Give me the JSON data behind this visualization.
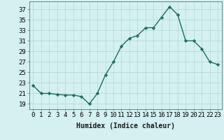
{
  "x": [
    0,
    1,
    2,
    3,
    4,
    5,
    6,
    7,
    8,
    9,
    10,
    11,
    12,
    13,
    14,
    15,
    16,
    17,
    18,
    19,
    20,
    21,
    22,
    23
  ],
  "y": [
    22.5,
    21.0,
    21.0,
    20.8,
    20.7,
    20.7,
    20.4,
    19.0,
    21.0,
    24.5,
    27.0,
    30.0,
    31.5,
    32.0,
    33.5,
    33.5,
    35.5,
    37.5,
    36.0,
    31.0,
    31.0,
    29.5,
    27.0,
    26.5
  ],
  "line_color": "#1a7060",
  "marker": "D",
  "marker_size": 2.2,
  "linewidth": 1.0,
  "xlabel": "Humidex (Indice chaleur)",
  "xlabel_fontsize": 7,
  "ytick_labels": [
    19,
    21,
    23,
    25,
    27,
    29,
    31,
    33,
    35,
    37
  ],
  "xtick_labels": [
    "0",
    "1",
    "2",
    "3",
    "4",
    "5",
    "6",
    "7",
    "8",
    "9",
    "10",
    "11",
    "12",
    "13",
    "14",
    "15",
    "16",
    "17",
    "18",
    "19",
    "20",
    "21",
    "22",
    "23"
  ],
  "ylim": [
    18.0,
    38.5
  ],
  "xlim": [
    -0.5,
    23.5
  ],
  "bg_color": "#d5f0f0",
  "grid_color": "#b0d8d8",
  "tick_fontsize": 6.5
}
